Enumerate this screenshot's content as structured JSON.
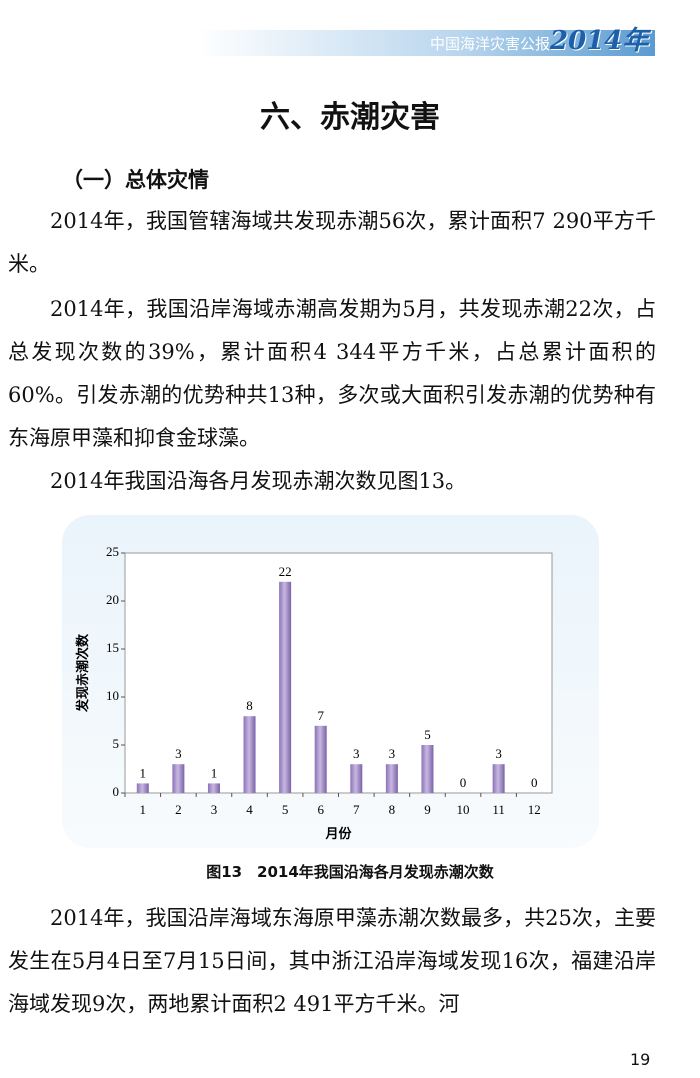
{
  "header": {
    "title": "中国海洋灾害公报",
    "year": "2014年"
  },
  "title": "六、赤潮灾害",
  "section": "（一）总体灾情",
  "paragraphs": [
    "2014年，我国管辖海域共发现赤潮56次，累计面积7 290平方千米。",
    "2014年，我国沿岸海域赤潮高发期为5月，共发现赤潮22次，占总发现次数的39%，累计面积4 344平方千米，占总累计面积的60%。引发赤潮的优势种共13种，多次或大面积引发赤潮的优势种有东海原甲藻和抑食金球藻。",
    "2014年我国沿海各月发现赤潮次数见图13。",
    "2014年，我国沿岸海域东海原甲藻赤潮次数最多，共25次，主要发生在5月4日至7月15日间，其中浙江沿岸海域发现16次，福建沿岸海域发现9次，两地累计面积2 491平方千米。河"
  ],
  "caption": "图13　2014年我国沿海各月发现赤潮次数",
  "page_number": "19",
  "chart_data": {
    "type": "bar",
    "x_label": "月份",
    "y_label": "发现赤潮次数",
    "categories": [
      "1",
      "2",
      "3",
      "4",
      "5",
      "6",
      "7",
      "8",
      "9",
      "10",
      "11",
      "12"
    ],
    "values": [
      1,
      3,
      1,
      8,
      22,
      7,
      3,
      3,
      5,
      0,
      3,
      0
    ],
    "color": "#c8b8e0",
    "ylim": [
      0,
      25
    ],
    "yticks": [
      0,
      5,
      10,
      15,
      20,
      25
    ],
    "grid": false
  }
}
